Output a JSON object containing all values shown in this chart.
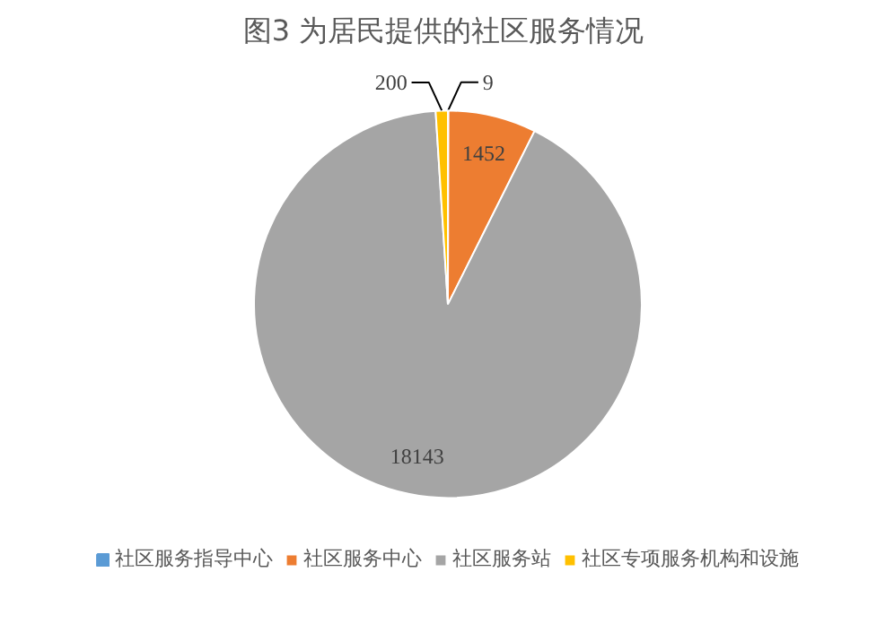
{
  "chart_data": {
    "type": "pie",
    "title": "图3  为居民提供的社区服务情况",
    "categories": [
      "社区服务指导中心",
      "社区服务中心",
      "社区服务站",
      "社区专项服务机构和设施"
    ],
    "values": [
      9,
      1452,
      18143,
      200
    ],
    "colors": [
      "#5b9bd5",
      "#ed7d31",
      "#a5a5a5",
      "#ffc000"
    ],
    "data_labels": true,
    "legend": "bottom"
  }
}
